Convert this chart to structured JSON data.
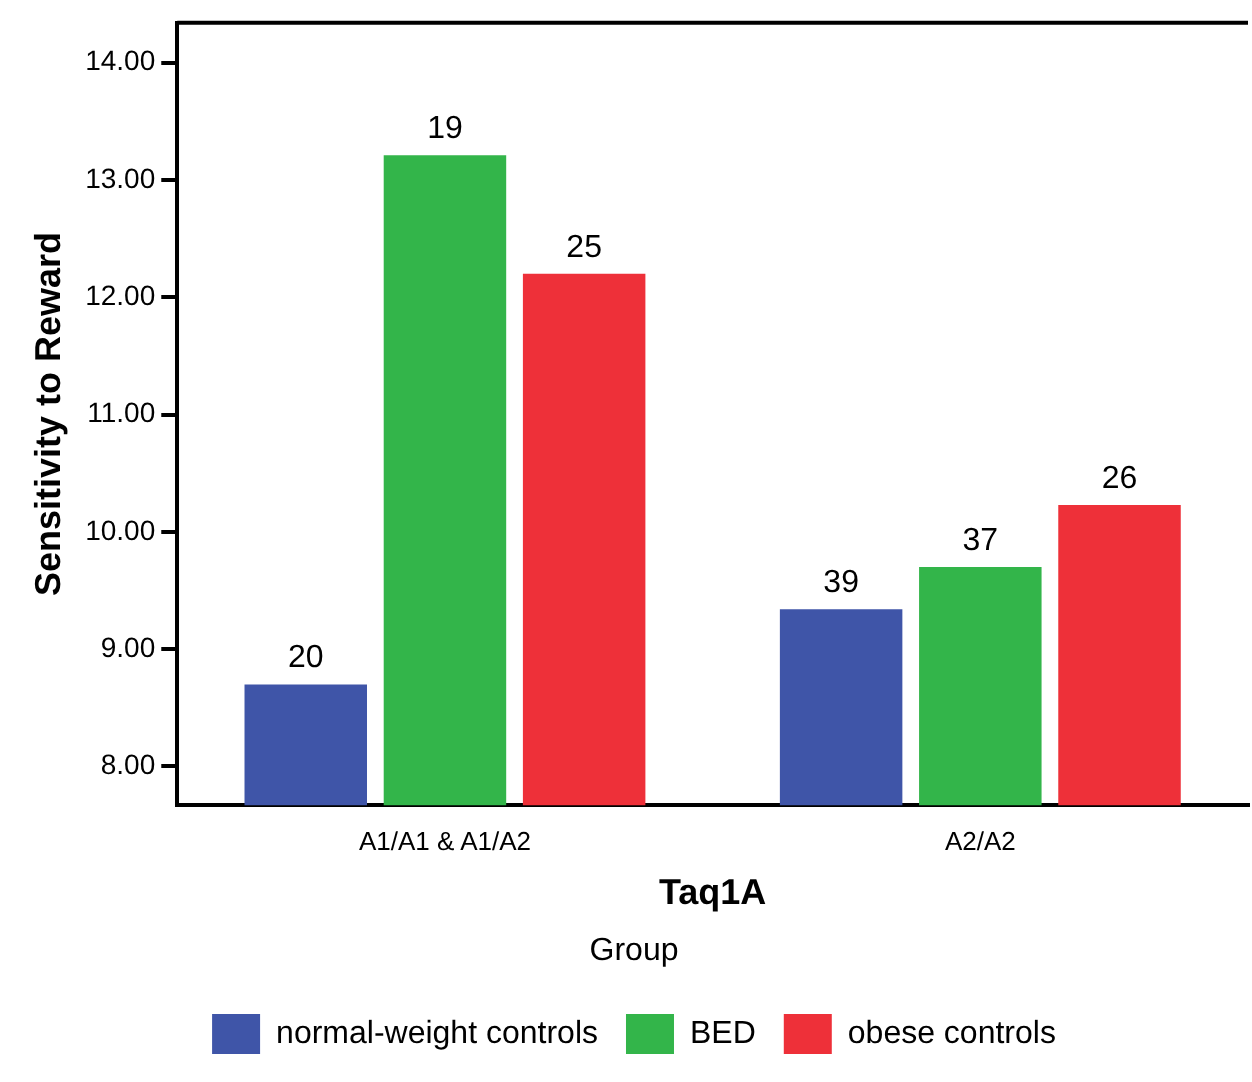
{
  "chart_data": {
    "type": "bar",
    "xlabel": "Taq1A",
    "ylabel": "Sensitivity to Reward",
    "legend_title": "Group",
    "categories": [
      "A1/A1 & A1/A2",
      "A2/A2"
    ],
    "series": [
      {
        "name": "normal-weight controls",
        "color": "#3f55a8",
        "values": [
          8.7,
          9.34
        ]
      },
      {
        "name": "BED",
        "color": "#33b54a",
        "values": [
          13.21,
          9.7
        ]
      },
      {
        "name": "obese controls",
        "color": "#ee3039",
        "values": [
          12.2,
          10.23
        ]
      }
    ],
    "annotations": [
      "20",
      "39",
      "19",
      "37",
      "25",
      "26"
    ],
    "ylim": [
      7.67,
      14.34
    ],
    "yticks": [
      {
        "value": 8,
        "label": "8.00"
      },
      {
        "value": 9,
        "label": "9.00"
      },
      {
        "value": 10,
        "label": "10.00"
      },
      {
        "value": 11,
        "label": "11.00"
      },
      {
        "value": 12,
        "label": "12.00"
      },
      {
        "value": 13,
        "label": "13.00"
      },
      {
        "value": 14,
        "label": "14.00"
      }
    ],
    "grid": false,
    "legend": "bottom"
  }
}
